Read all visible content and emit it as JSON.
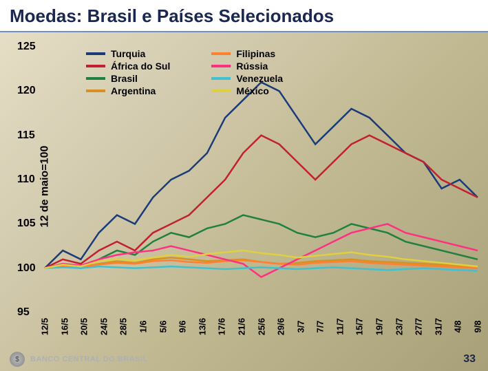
{
  "title": "Moedas: Brasil e Países Selecionados",
  "page_number": "33",
  "footer_text": "BANCO CENTRAL DO BRASIL",
  "chart": {
    "type": "line",
    "ylabel": "12 de maio=100",
    "ylim": [
      95,
      125
    ],
    "ytick_step": 5,
    "yticks": [
      95,
      100,
      105,
      110,
      115,
      120,
      125
    ],
    "xticks": [
      "12/5",
      "16/5",
      "20/5",
      "24/5",
      "28/5",
      "1/6",
      "5/6",
      "9/6",
      "13/6",
      "17/6",
      "21/6",
      "25/6",
      "29/6",
      "3/7",
      "7/7",
      "11/7",
      "15/7",
      "19/7",
      "23/7",
      "27/7",
      "31/7",
      "4/8",
      "9/8"
    ],
    "line_width": 2.5,
    "series": [
      {
        "name": "Turquia",
        "color": "#1a3a7a",
        "values": [
          100,
          102,
          101,
          104,
          106,
          105,
          108,
          110,
          111,
          113,
          117,
          119,
          121,
          120,
          117,
          114,
          116,
          118,
          117,
          115,
          113,
          112,
          109,
          110,
          108
        ]
      },
      {
        "name": "África do Sul",
        "color": "#c02030",
        "values": [
          100,
          101,
          100.5,
          102,
          103,
          102,
          104,
          105,
          106,
          108,
          110,
          113,
          115,
          114,
          112,
          110,
          112,
          114,
          115,
          114,
          113,
          112,
          110,
          109,
          108
        ]
      },
      {
        "name": "Brasil",
        "color": "#208040",
        "values": [
          100,
          100.5,
          100,
          101,
          102,
          101.5,
          103,
          104,
          103.5,
          104.5,
          105,
          106,
          105.5,
          105,
          104,
          103.5,
          104,
          105,
          104.5,
          104,
          103,
          102.5,
          102,
          101.5,
          101
        ]
      },
      {
        "name": "Argentina",
        "color": "#d89020",
        "values": [
          100,
          100.2,
          100.1,
          100.5,
          100.8,
          100.6,
          101,
          101.2,
          101,
          100.8,
          100.9,
          101,
          100.7,
          100.5,
          100.6,
          100.8,
          100.9,
          101,
          100.8,
          100.7,
          100.6,
          100.5,
          100.4,
          100.3,
          100.2
        ]
      },
      {
        "name": "Filipinas",
        "color": "#ff8030",
        "values": [
          100,
          100.3,
          100.1,
          100.4,
          100.6,
          100.5,
          100.8,
          100.9,
          100.7,
          100.6,
          100.8,
          100.9,
          100.7,
          100.5,
          100.4,
          100.6,
          100.7,
          100.8,
          100.6,
          100.5,
          100.4,
          100.3,
          100.2,
          100.1,
          100
        ]
      },
      {
        "name": "Rússia",
        "color": "#ff3080",
        "values": [
          100,
          100.5,
          100.3,
          101,
          101.5,
          101.8,
          102,
          102.5,
          102,
          101.5,
          101,
          100.5,
          99,
          100,
          101,
          102,
          103,
          104,
          104.5,
          105,
          104,
          103.5,
          103,
          102.5,
          102
        ]
      },
      {
        "name": "Venezuela",
        "color": "#40c0d0",
        "values": [
          100,
          100.1,
          100,
          100.2,
          100.1,
          100,
          100.1,
          100.2,
          100.1,
          100,
          99.9,
          100,
          100.1,
          100,
          99.9,
          100,
          100.1,
          100,
          99.9,
          99.8,
          99.9,
          100,
          99.9,
          99.8,
          99.7
        ]
      },
      {
        "name": "México",
        "color": "#e0d040",
        "values": [
          100,
          100.4,
          100.2,
          100.8,
          101,
          100.9,
          101.2,
          101.5,
          101.3,
          101.6,
          101.8,
          102,
          101.7,
          101.5,
          101.2,
          101.4,
          101.6,
          101.8,
          101.5,
          101.3,
          101,
          100.8,
          100.6,
          100.4,
          100.2
        ]
      }
    ],
    "legend_layout": [
      [
        "Turquia",
        "África do Sul",
        "Brasil",
        "Argentina"
      ],
      [
        "Filipinas",
        "Rússia",
        "Venezuela",
        "México"
      ]
    ]
  }
}
